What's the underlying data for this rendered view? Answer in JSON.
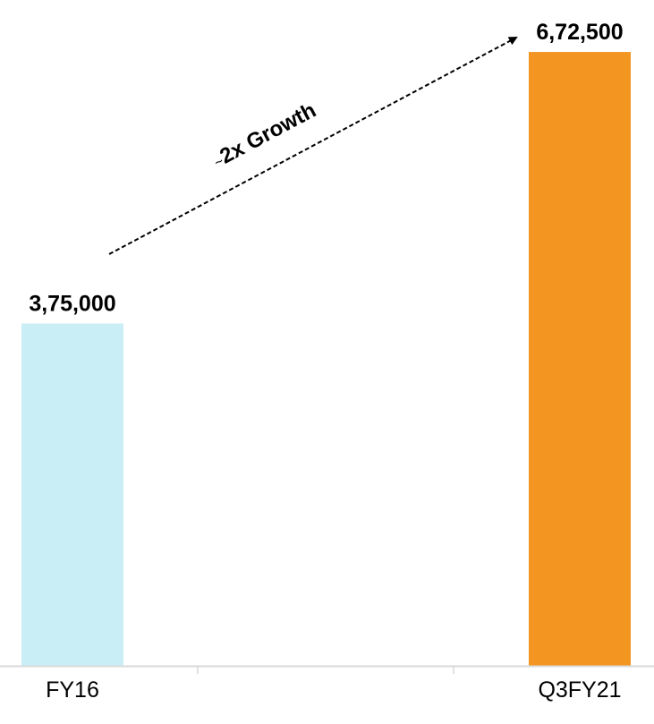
{
  "chart_data": {
    "type": "bar",
    "categories": [
      "FY16",
      "Q3FY21"
    ],
    "values": [
      375000,
      672500
    ],
    "data_labels": [
      "3,75,000",
      "6,72,500"
    ],
    "bar_colors": [
      "#c9eef5",
      "#f39521"
    ],
    "ylim": [
      0,
      700000
    ],
    "title": "",
    "xlabel": "",
    "ylabel": "",
    "grid": false,
    "legend": "none",
    "annotation": {
      "prefix": "~",
      "text": "2x Growth",
      "style": "dashed-arrow",
      "from_category": "FY16",
      "to_category": "Q3FY21"
    },
    "axis_color": "#d9d9d9"
  }
}
